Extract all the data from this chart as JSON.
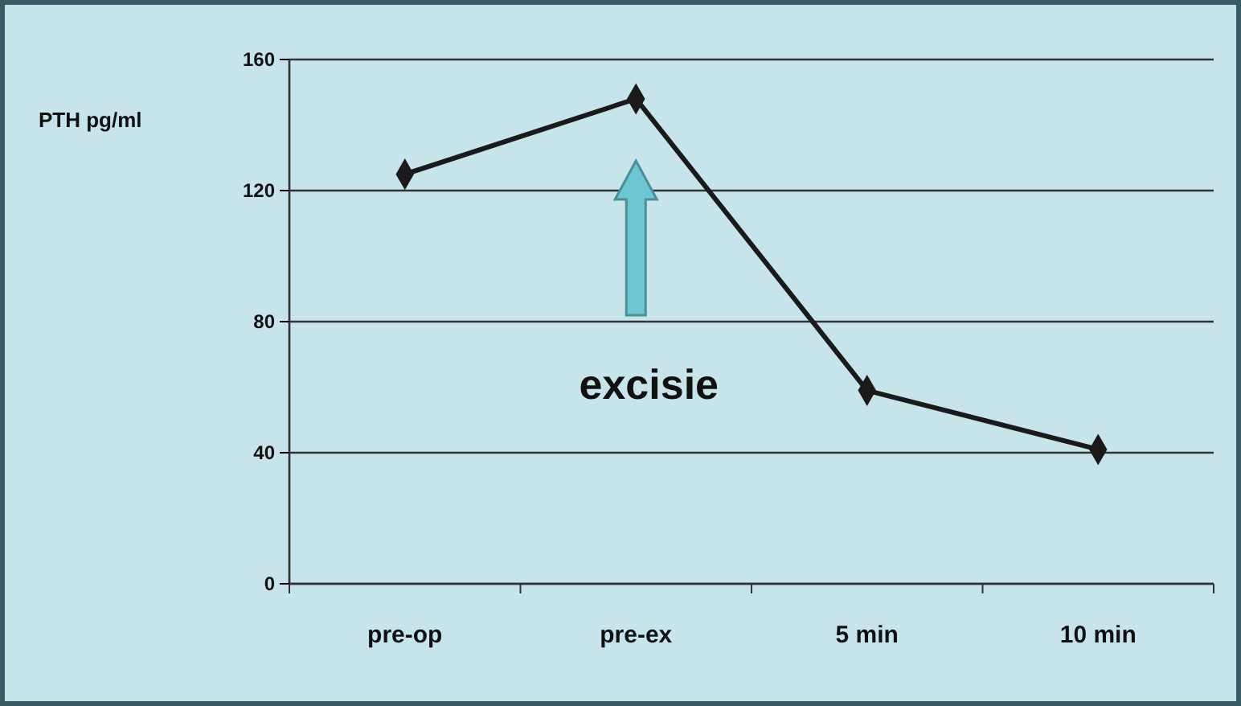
{
  "chart_data": {
    "type": "line",
    "ylabel": "PTH pg/ml",
    "categories": [
      "pre-op",
      "pre-ex",
      "5 min",
      "10 min"
    ],
    "series": [
      {
        "color": "#1a1a1a",
        "values": [
          125,
          148,
          59,
          41
        ]
      }
    ],
    "ylim": [
      0,
      160
    ],
    "yticks": [
      0,
      40,
      80,
      120,
      160
    ],
    "grid": "y",
    "marker": "diamond",
    "line_style": "solid",
    "annotations": [
      "excisie"
    ]
  }
}
